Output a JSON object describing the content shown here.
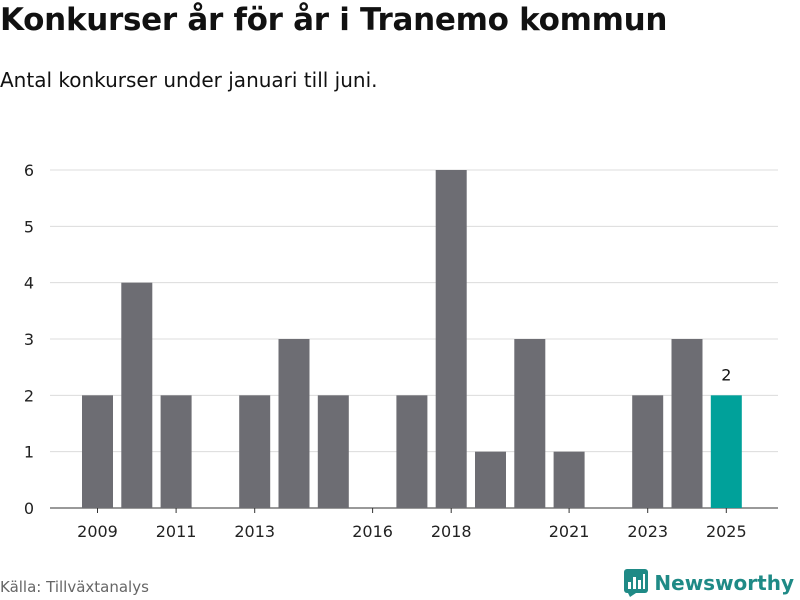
{
  "title": "Konkurser år för år i Tranemo kommun",
  "subtitle": "Antal konkurser under januari till juni.",
  "source": "Källa: Tillväxtanalys",
  "brand": {
    "name": "Newsworthy",
    "icon": "newsworthy-logo-icon"
  },
  "colors": {
    "bar": "#6d6d73",
    "highlight": "#00a19a",
    "grid": "#dcdcdc",
    "axis": "#333333"
  },
  "chart_data": {
    "type": "bar",
    "x": [
      2009,
      2010,
      2011,
      2012,
      2013,
      2014,
      2015,
      2016,
      2017,
      2018,
      2019,
      2020,
      2021,
      2022,
      2023,
      2024,
      2025
    ],
    "values": [
      2,
      4,
      2,
      0,
      2,
      3,
      2,
      0,
      2,
      6,
      1,
      3,
      1,
      0,
      2,
      3,
      2
    ],
    "x_tick_labels": [
      "2009",
      "2011",
      "2013",
      "2016",
      "2018",
      "2021",
      "2023",
      "2025"
    ],
    "y_ticks": [
      0,
      1,
      2,
      3,
      4,
      5,
      6
    ],
    "ylim": [
      0,
      6
    ],
    "grid": true,
    "highlight": {
      "x": 2025,
      "label": "2"
    }
  }
}
